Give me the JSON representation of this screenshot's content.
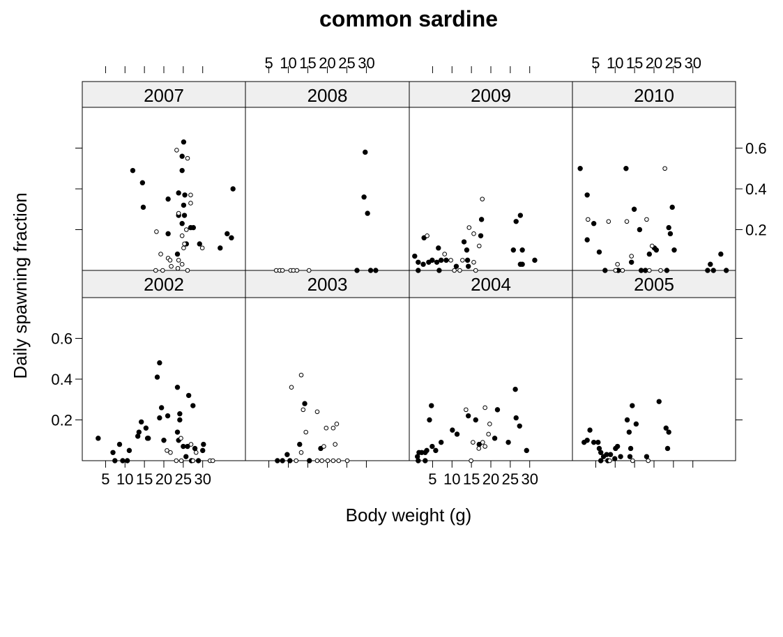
{
  "figure": {
    "title": "common sardine",
    "xlabel": "Body weight (g)",
    "ylabel": "Daily spawning fraction"
  },
  "chart_data": [
    {
      "type": "scatter",
      "title": "2002",
      "xlim": [
        -1,
        41
      ],
      "ylim": [
        0,
        0.8
      ],
      "xticks": [
        5,
        10,
        15,
        20,
        25,
        30
      ],
      "yticks": [
        0.2,
        0.4,
        0.6
      ],
      "xtick_labels": "bottom",
      "ytick_labels": "left",
      "series": [
        {
          "color": "#000000",
          "marker": "filled",
          "x": [
            3.1,
            6.9,
            7.4,
            8.6,
            9.4,
            10.6,
            11.1,
            13.3,
            13.6,
            14.2,
            15.4,
            15.8,
            16,
            18.3,
            18.9,
            19.4,
            18.9,
            21.0,
            20.0,
            23.5,
            23.5,
            23.8,
            24.1,
            24.1,
            25.0,
            26.1,
            26.4,
            27.5,
            28.0,
            27.1,
            28.9,
            30,
            30.2,
            25.7
          ],
          "values": [
            0.11,
            0.04,
            0,
            0.08,
            0,
            0,
            0.05,
            0.12,
            0.14,
            0.19,
            0.16,
            0.11,
            0.11,
            0.41,
            0.48,
            0.26,
            0.21,
            0.22,
            0.1,
            0.36,
            0.14,
            0.1,
            0.23,
            0.2,
            0.07,
            0.07,
            0.32,
            0.27,
            0.06,
            0,
            0,
            0.05,
            0.08,
            0.02
          ]
        },
        {
          "color": "#000000",
          "marker": "open",
          "x": [
            20.8,
            21.7,
            24.4,
            27.0,
            28.3,
            23.2,
            24.5,
            31.9,
            32.6,
            27.5
          ],
          "values": [
            0.05,
            0.04,
            0.11,
            0.08,
            0.04,
            0,
            0,
            0,
            0,
            0
          ]
        }
      ]
    },
    {
      "type": "scatter",
      "title": "2003",
      "xlim": [
        -1,
        41
      ],
      "ylim": [
        0,
        0.8
      ],
      "xticks": [
        5,
        10,
        15,
        20,
        25,
        30
      ],
      "yticks": [
        0.2,
        0.4,
        0.6
      ],
      "xtick_labels": "none",
      "ytick_labels": "none",
      "series": [
        {
          "color": "#000000",
          "marker": "filled",
          "x": [
            9.7,
            12.9,
            14.2,
            18.3,
            7.2,
            8.5,
            10.4,
            15.4
          ],
          "values": [
            0.03,
            0.08,
            0.28,
            0.06,
            0,
            0,
            0,
            0
          ]
        },
        {
          "color": "#000000",
          "marker": "open",
          "x": [
            10.8,
            13.3,
            13.8,
            17.4,
            19.7,
            21.5,
            22.4,
            22.0,
            19.1,
            14.5,
            13.3,
            17.4,
            18.6,
            20.1,
            21.5,
            22.9,
            25.1,
            12.0
          ],
          "values": [
            0.36,
            0.42,
            0.25,
            0.24,
            0.16,
            0.16,
            0.18,
            0.08,
            0.07,
            0.14,
            0.04,
            0,
            0,
            0,
            0,
            0,
            0,
            0
          ]
        }
      ]
    },
    {
      "type": "scatter",
      "title": "2004",
      "xlim": [
        -1,
        41
      ],
      "ylim": [
        0,
        0.8
      ],
      "xticks": [
        5,
        10,
        15,
        20,
        25,
        30
      ],
      "yticks": [
        0.2,
        0.4,
        0.6
      ],
      "xtick_labels": "bottom",
      "ytick_labels": "none",
      "series": [
        {
          "color": "#000000",
          "marker": "filled",
          "x": [
            1.1,
            1.5,
            2.2,
            3.1,
            3.5,
            4.7,
            4.2,
            4.9,
            5.8,
            7.2,
            10.1,
            11.3,
            14.2,
            16.1,
            17.0,
            21.7,
            24.5,
            26.5,
            26.3,
            27.4,
            29.2,
            21,
            1.3,
            3.1
          ],
          "values": [
            0.02,
            0.04,
            0.04,
            0.04,
            0.05,
            0.27,
            0.2,
            0.07,
            0.05,
            0.09,
            0.15,
            0.13,
            0.22,
            0.2,
            0.08,
            0.25,
            0.09,
            0.21,
            0.35,
            0.17,
            0.05,
            0.11,
            0,
            0
          ]
        },
        {
          "color": "#000000",
          "marker": "open",
          "x": [
            13.6,
            15.4,
            16.9,
            17.9,
            18.5,
            18.5,
            19.4,
            19.7,
            14.9
          ],
          "values": [
            0.25,
            0.09,
            0.06,
            0.09,
            0.07,
            0.26,
            0.13,
            0.18,
            0
          ]
        }
      ]
    },
    {
      "type": "scatter",
      "title": "2005",
      "xlim": [
        -1,
        41
      ],
      "ylim": [
        0,
        0.8
      ],
      "xticks": [
        5,
        10,
        15,
        20,
        25,
        30
      ],
      "yticks": [
        0.2,
        0.4,
        0.6
      ],
      "xtick_labels": "none",
      "ytick_labels": "none",
      "series": [
        {
          "color": "#000000",
          "marker": "filled",
          "x": [
            2.0,
            2.8,
            3.5,
            4.5,
            5.6,
            5.9,
            6.3,
            7.0,
            7.8,
            8.8,
            9.9,
            10.6,
            10.1,
            11.4,
            13.6,
            13.1,
            14.4,
            15.4,
            14,
            13.8,
            18.1,
            21.3,
            23.1,
            23.5,
            23.8,
            8.1,
            6.3
          ],
          "values": [
            0.09,
            0.1,
            0.15,
            0.09,
            0.09,
            0.06,
            0.04,
            0.02,
            0.03,
            0.03,
            0.01,
            0.07,
            0.06,
            0.02,
            0.14,
            0.2,
            0.27,
            0.18,
            0.06,
            0.02,
            0.02,
            0.29,
            0.16,
            0.06,
            0.14,
            0,
            0
          ]
        },
        {
          "color": "#000000",
          "marker": "open",
          "x": [
            8.6,
            14.5,
            18.5
          ],
          "values": [
            0,
            0,
            0
          ]
        }
      ]
    },
    {
      "type": "scatter",
      "title": "2007",
      "xlim": [
        -1,
        41
      ],
      "ylim": [
        0,
        0.8
      ],
      "xticks": [
        5,
        10,
        15,
        20,
        25,
        30
      ],
      "yticks": [
        0.2,
        0.4,
        0.6
      ],
      "xtick_labels": "none",
      "ytick_labels": "none",
      "series": [
        {
          "color": "#000000",
          "marker": "filled",
          "x": [
            12.0,
            14.5,
            14.7,
            21.1,
            21.1,
            23.8,
            24.7,
            25.1,
            24.7,
            25.4,
            23.8,
            25.3,
            24.7,
            26.9,
            27.6,
            25.8,
            23.5,
            29.2,
            34.5,
            36.3,
            37.4,
            37.8,
            25.1
          ],
          "values": [
            0.49,
            0.43,
            0.31,
            0.35,
            0.18,
            0.38,
            0.49,
            0.63,
            0.56,
            0.37,
            0.27,
            0.27,
            0.23,
            0.21,
            0.21,
            0.13,
            0.08,
            0.13,
            0.11,
            0.18,
            0.16,
            0.4,
            0.32
          ]
        },
        {
          "color": "#000000",
          "marker": "open",
          "x": [
            23.3,
            26.1,
            18.1,
            19.2,
            21.1,
            21.6,
            21.9,
            23.8,
            24.7,
            25.3,
            26.9,
            26.9,
            25.8,
            25.1,
            29.9,
            23.8,
            24.7,
            23.6,
            17.9,
            19.7,
            26.1
          ],
          "values": [
            0.59,
            0.55,
            0.19,
            0.08,
            0.06,
            0.05,
            0.02,
            0.28,
            0.17,
            0.13,
            0.37,
            0.33,
            0.2,
            0.11,
            0.11,
            0.05,
            0.03,
            0.01,
            0,
            0,
            0
          ]
        }
      ]
    },
    {
      "type": "scatter",
      "title": "2008",
      "xlim": [
        -1,
        41
      ],
      "ylim": [
        0,
        0.8
      ],
      "xticks": [
        5,
        10,
        15,
        20,
        25,
        30
      ],
      "yticks": [
        0.2,
        0.4,
        0.6
      ],
      "xtick_labels": "top",
      "ytick_labels": "none",
      "series": [
        {
          "color": "#000000",
          "marker": "filled",
          "x": [
            29.7,
            29.4,
            30.3,
            27.6,
            31.1,
            32.4
          ],
          "values": [
            0.58,
            0.36,
            0.28,
            0,
            0,
            0
          ]
        },
        {
          "color": "#000000",
          "marker": "open",
          "x": [
            6.9,
            7.8,
            8.5,
            10.6,
            11.3,
            12.2,
            15.3
          ],
          "values": [
            0,
            0,
            0,
            0,
            0,
            0,
            0
          ]
        }
      ]
    },
    {
      "type": "scatter",
      "title": "2009",
      "xlim": [
        -1,
        41
      ],
      "ylim": [
        0,
        0.8
      ],
      "xticks": [
        5,
        10,
        15,
        20,
        25,
        30
      ],
      "yticks": [
        0.2,
        0.4,
        0.6
      ],
      "xtick_labels": "none",
      "ytick_labels": "none",
      "series": [
        {
          "color": "#000000",
          "marker": "filled",
          "x": [
            0.4,
            1.3,
            2.6,
            2.8,
            4.0,
            4.9,
            6.1,
            6.5,
            7.2,
            8.5,
            11.1,
            13.1,
            13.8,
            14.0,
            14.2,
            17.4,
            17.6,
            25.8,
            26.5,
            27.6,
            28.1,
            28.1,
            27.6,
            31.3,
            6.7,
            1.3
          ],
          "values": [
            0.07,
            0.04,
            0.03,
            0.16,
            0.04,
            0.05,
            0.04,
            0.11,
            0.05,
            0.05,
            0.02,
            0.14,
            0.1,
            0.05,
            0.02,
            0.17,
            0.25,
            0.1,
            0.24,
            0.27,
            0.1,
            0.03,
            0.03,
            0.05,
            0,
            0
          ]
        },
        {
          "color": "#000000",
          "marker": "open",
          "x": [
            3.6,
            8.1,
            9.7,
            12.7,
            14.4,
            15.6,
            15.6,
            17.0,
            17.8,
            16.1,
            10.6,
            12.0
          ],
          "values": [
            0.17,
            0.08,
            0.05,
            0.05,
            0.21,
            0.18,
            0.04,
            0.12,
            0.35,
            0,
            0,
            0
          ]
        }
      ]
    },
    {
      "type": "scatter",
      "title": "2010",
      "xlim": [
        -1,
        41
      ],
      "ylim": [
        0,
        0.8
      ],
      "xticks": [
        5,
        10,
        15,
        20,
        25,
        30
      ],
      "yticks": [
        0.2,
        0.4,
        0.6
      ],
      "xtick_labels": "top",
      "ytick_labels": "right",
      "series": [
        {
          "color": "#000000",
          "marker": "filled",
          "x": [
            1.0,
            2.8,
            2.8,
            4.5,
            5.9,
            7.4,
            12.8,
            14.9,
            16.3,
            16.7,
            17.8,
            18.8,
            20.1,
            20.6,
            23.3,
            23.8,
            24.2,
            24.7,
            25.2,
            14.2,
            34.5,
            37.2,
            33.8,
            35.3,
            38.6,
            10.8
          ],
          "values": [
            0.5,
            0.37,
            0.15,
            0.23,
            0.09,
            0,
            0.5,
            0.3,
            0.2,
            0,
            0,
            0.08,
            0.11,
            0.1,
            0,
            0.21,
            0.18,
            0.31,
            0.1,
            0.04,
            0.03,
            0.08,
            0,
            0,
            0,
            0
          ]
        },
        {
          "color": "#000000",
          "marker": "open",
          "x": [
            3.0,
            8.3,
            13.0,
            10.6,
            14.2,
            18.1,
            19.5,
            22.8,
            10.1,
            11.9,
            18.8,
            21.7
          ],
          "values": [
            0.25,
            0.24,
            0.24,
            0.03,
            0.07,
            0.25,
            0.12,
            0.5,
            0,
            0,
            0,
            0
          ]
        }
      ]
    }
  ]
}
